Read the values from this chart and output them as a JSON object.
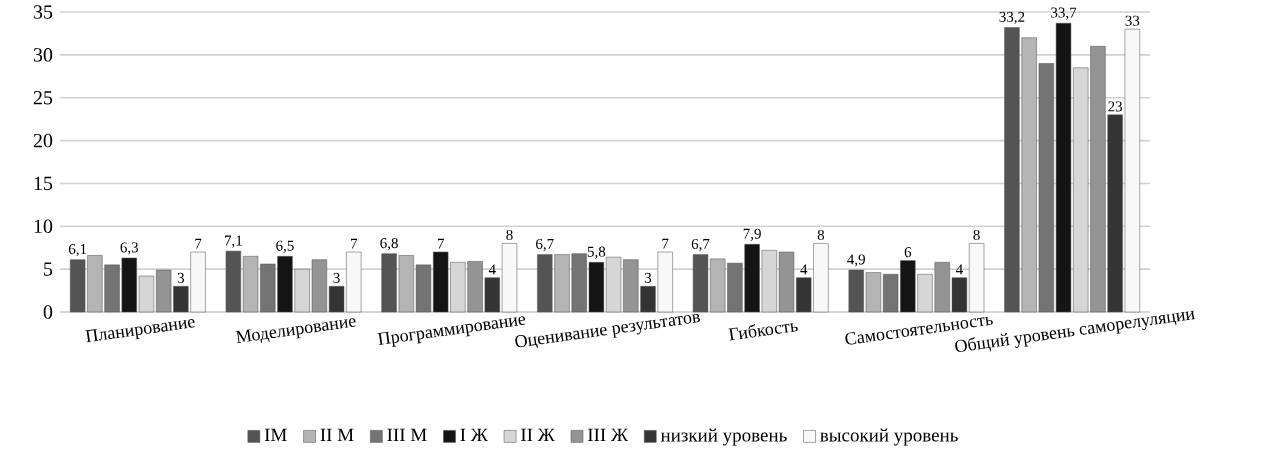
{
  "chart_data": {
    "type": "bar",
    "categories": [
      "Планирование",
      "Моделирование",
      "Программирование",
      "Оценивание  результатов",
      "Гибкость",
      "Самостоятельность",
      "Общий уровень саморелуляции"
    ],
    "series": [
      {
        "name": "IМ",
        "color": "#545454",
        "values": [
          6.1,
          7.1,
          6.8,
          6.7,
          6.7,
          4.9,
          33.2
        ],
        "value_labels": [
          "6,1",
          "7,1",
          "6,8",
          "6,7",
          "6,7",
          "4,9",
          "33,2"
        ]
      },
      {
        "name": "II М",
        "color": "#b4b4b4",
        "values": [
          6.6,
          6.5,
          6.6,
          6.7,
          6.2,
          4.6,
          32
        ]
      },
      {
        "name": "III  М",
        "color": "#747474",
        "values": [
          5.5,
          5.6,
          5.5,
          6.8,
          5.7,
          4.4,
          29
        ]
      },
      {
        "name": "I Ж",
        "color": "#141414",
        "values": [
          6.3,
          6.5,
          7,
          5.8,
          7.9,
          6,
          33.7
        ],
        "value_labels": [
          "6,3",
          "6,5",
          "7",
          "5,8",
          "7,9",
          "6",
          "33,7"
        ]
      },
      {
        "name": "II Ж",
        "color": "#d6d6d6",
        "values": [
          4.2,
          5,
          5.8,
          6.4,
          7.2,
          4.4,
          28.5
        ]
      },
      {
        "name": "III Ж",
        "color": "#949494",
        "values": [
          4.9,
          6.1,
          5.9,
          6.1,
          7,
          5.8,
          31
        ]
      },
      {
        "name": "низкий уровень",
        "color": "#343434",
        "values": [
          3,
          3,
          4,
          3,
          4,
          4,
          23
        ],
        "value_labels": [
          "3",
          "3",
          "4",
          "3",
          "4",
          "4",
          "23"
        ]
      },
      {
        "name": "высокий уровень",
        "color": "#f8f8f8",
        "values": [
          7,
          7,
          8,
          7,
          8,
          8,
          33
        ],
        "value_labels": [
          "7",
          "7",
          "8",
          "7",
          "8",
          "8",
          "33"
        ]
      }
    ],
    "ylim": [
      0,
      35
    ],
    "yticks": [
      0,
      5,
      10,
      15,
      20,
      25,
      30,
      35
    ],
    "grid": "y",
    "legend": "bottom"
  }
}
